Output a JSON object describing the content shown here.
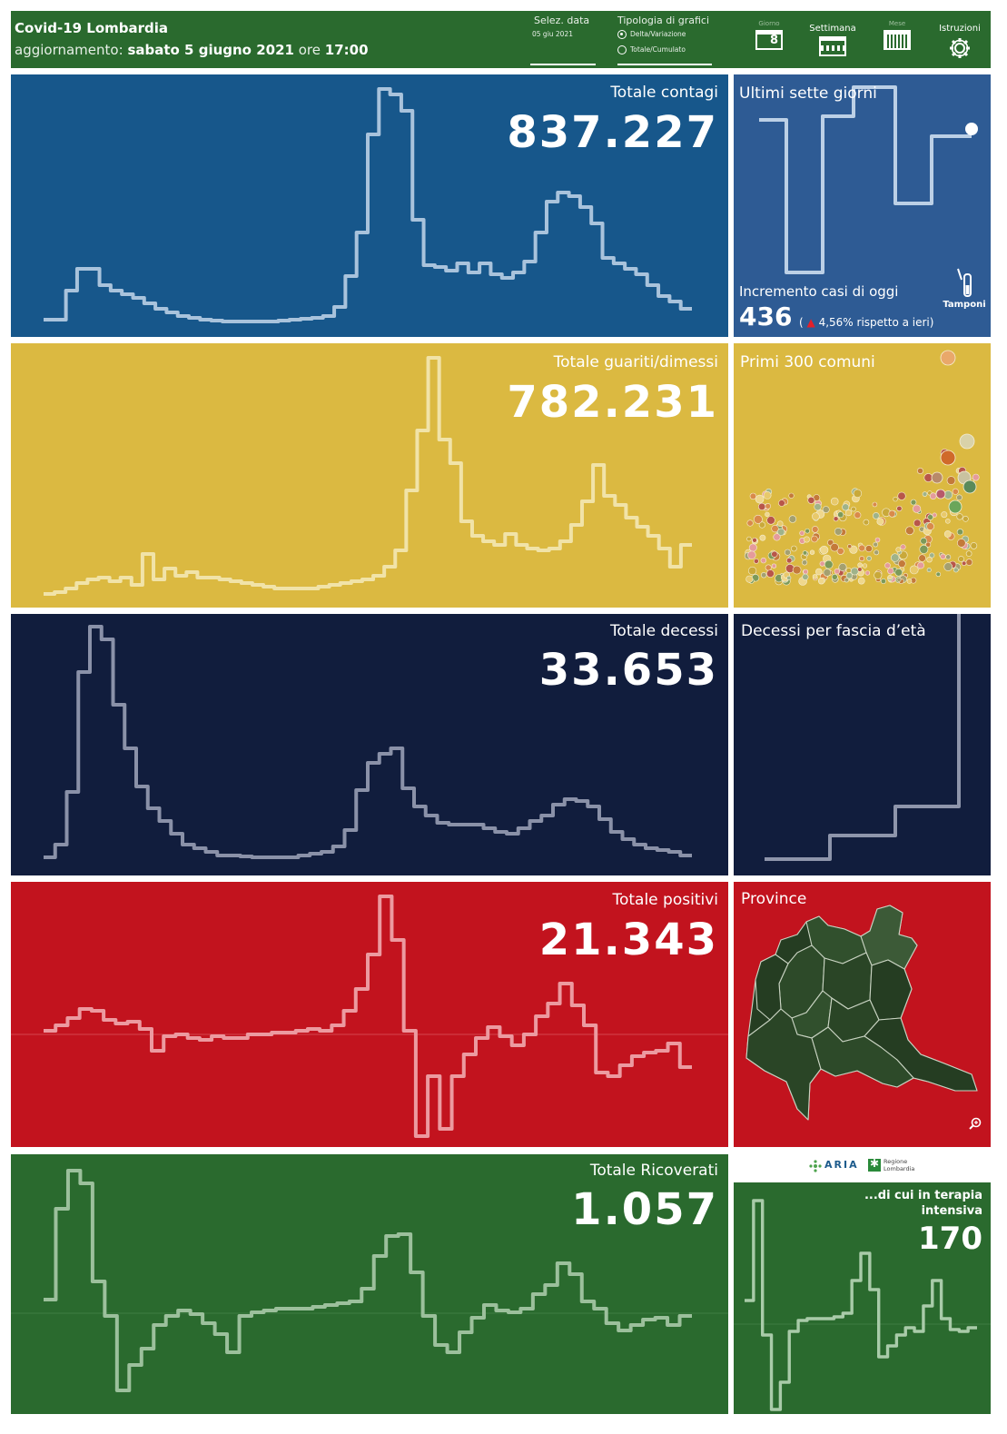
{
  "header": {
    "title": "Covid-19 Lombardia",
    "update_prefix": "aggiornamento:",
    "update_date": "sabato 5 giugno 2021",
    "update_time_prefix": "ore",
    "update_time": "17:00",
    "date_label": "Selez. data",
    "date_value": "05 giu 2021",
    "chart_type_label": "Tipologia di grafici",
    "chart_type_options": [
      "Delta/Variazione",
      "Totale/Cumulato"
    ],
    "chart_type_selected": "Delta/Variazione",
    "nav": {
      "day_label": "Giorno",
      "day_number": "8",
      "week_label": "Settimana",
      "month_label": "Mese",
      "help_label": "Istruzioni"
    }
  },
  "panels": {
    "contagi": {
      "title": "Totale contagi",
      "value": "837.227",
      "color": "#17578b"
    },
    "guariti": {
      "title": "Totale guariti/dimessi",
      "value": "782.231",
      "color": "#dbb941"
    },
    "decessi": {
      "title": "Totale decessi",
      "value": "33.653",
      "color": "#111d3d"
    },
    "positivi": {
      "title": "Totale positivi",
      "value": "21.343",
      "color": "#c2131e"
    },
    "ricoverati": {
      "title": "Totale Ricoverati",
      "value": "1.057",
      "color": "#2a6a2e"
    }
  },
  "side": {
    "seven_days": {
      "title": "Ultimi sette giorni",
      "increment_label": "Incremento casi di oggi",
      "increment_value": "436",
      "change_text": "4,56% rispetto a  ieri)",
      "open_paren": "(",
      "tamponi_label": "Tamponi",
      "color": "#2e5b94"
    },
    "comuni": {
      "title": "Primi 300 comuni",
      "color": "#dbb941"
    },
    "fascia": {
      "title": "Decessi per fascia d’età",
      "color": "#111d3d"
    },
    "province": {
      "title": "Province",
      "color": "#c2131e"
    },
    "terapia": {
      "title_line1": "...di cui in terapia",
      "title_line2": "intensiva",
      "value": "170",
      "color": "#2a6a2e"
    },
    "logos": {
      "aria": "ARIA",
      "regione_line1": "Regione",
      "regione_line2": "Lombardia"
    }
  },
  "icons": [
    "calendar-day-icon",
    "calendar-week-icon",
    "calendar-month-icon",
    "gear-icon",
    "test-tube-icon",
    "zoom-icon",
    "up-arrow-icon"
  ]
}
